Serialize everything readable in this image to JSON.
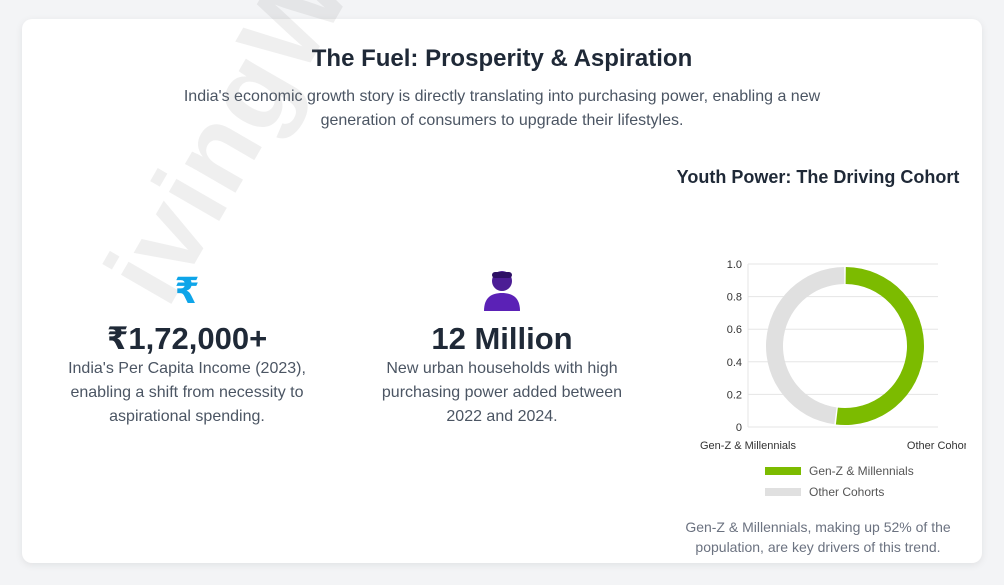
{
  "header": {
    "title": "The Fuel: Prosperity & Aspiration",
    "subtitle": "India's economic growth story is directly translating into purchasing power, enabling a new generation of consumers to upgrade their lifestyles."
  },
  "stats": [
    {
      "icon": "rupee-icon",
      "icon_glyph": "₹",
      "icon_color": "#0ea5e9",
      "value": "₹1,72,000+",
      "description": "India's Per Capita Income (2023), enabling a shift from necessity to aspirational spending."
    },
    {
      "icon": "person-icon",
      "icon_color": "#4c1d95",
      "value": "12 Million",
      "description": "New urban households with high purchasing power added between 2022 and 2024."
    }
  ],
  "chart_note": "Gen-Z & Millennials, making up 52% of the population, are key drivers of this trend.",
  "watermark": "ivingWithGra",
  "chart_data": {
    "type": "pie",
    "variant": "doughnut",
    "title": "Youth Power: The Driving Cohort",
    "categories": [
      "Gen-Z & Millennials",
      "Other Cohorts"
    ],
    "values": [
      52,
      48
    ],
    "colors": [
      "#7cbb00",
      "#e0e0e0"
    ],
    "legend_position": "bottom",
    "y_ticks": [
      "0",
      "0.2",
      "0.4",
      "0.6",
      "0.8",
      "1.0"
    ],
    "ylim": [
      0,
      1
    ],
    "grid": true
  }
}
